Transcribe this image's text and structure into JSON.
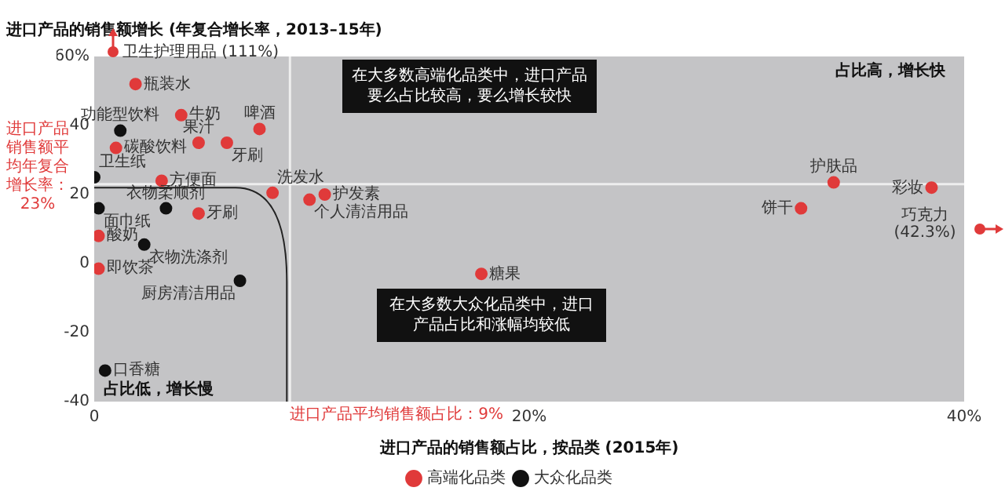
{
  "chart_data": {
    "type": "scatter",
    "ylabel": "进口产品的销售额增长 (年复合增长率，2013–15年)",
    "xlabel": "进口产品的销售额占比，按品类 (2015年)",
    "xlim": [
      0,
      40
    ],
    "xticks": [
      0,
      {
        "value": 20,
        "label": "20%"
      },
      {
        "value": 40,
        "label": "40%"
      }
    ],
    "ylim": [
      -40,
      60
    ],
    "yticks": [
      {
        "value": 60,
        "label": "60%"
      },
      40,
      20,
      0,
      -20,
      -40
    ],
    "grid": false,
    "legend": "bottom",
    "marker": "circle",
    "series": [
      {
        "name": "高端化品类",
        "color": "#e03a3a",
        "x": [
          1.9,
          4.0,
          1.0,
          4.8,
          7.6,
          6.1,
          3.1,
          4.8,
          0.2,
          0.2,
          8.2,
          9.9,
          10.6,
          17.8,
          32.5,
          34.0,
          38.5
        ],
        "values": [
          52,
          43,
          33.5,
          35,
          39,
          35,
          24,
          14.5,
          8,
          -1.5,
          20.5,
          18.5,
          20,
          -3,
          16,
          23.5,
          22
        ]
      },
      {
        "name": "大众化品类",
        "color": "#111111",
        "x": [
          1.2,
          0,
          3.3,
          0.2,
          2.3,
          6.7,
          0.5
        ],
        "values": [
          38.5,
          25,
          16,
          16,
          5.5,
          -5,
          -31
        ]
      }
    ],
    "ref_lines": [
      {
        "axis": "y",
        "value": 23,
        "label": "进口产品销售额平均年复合增长率：23%",
        "color": "#eeeeee"
      },
      {
        "axis": "x",
        "value": 9,
        "label": "进口产品平均销售额占比：9%",
        "color": "#eeeeee"
      }
    ],
    "annotations": [
      "在大多数高端化品类中，进口产品要么占比较高，要么增长较快",
      "在大多数大众化品类中，进口产品占比和涨幅均较低",
      "占比高，增长快",
      "占比低，增长慢",
      "卫生护理用品 (111%)",
      {
        "text": "瓶装水",
        "x": 1.9,
        "y": 52
      },
      {
        "text": "功能型饮料",
        "x": 1.2,
        "y": 38.5
      },
      {
        "text": "牛奶",
        "x": 4.0,
        "y": 43
      },
      {
        "text": "碳酸饮料",
        "x": 1.0,
        "y": 33.5
      },
      {
        "text": "果汁",
        "x": 4.8,
        "y": 35
      },
      {
        "text": "啤酒",
        "x": 7.6,
        "y": 39
      },
      {
        "text": "牙刷",
        "x": 6.1,
        "y": 35
      },
      {
        "text": "卫生纸",
        "x": 0,
        "y": 25
      },
      {
        "text": "方便面",
        "x": 3.1,
        "y": 24
      },
      {
        "text": "衣物柔顺剂",
        "x": 3.3,
        "y": 16
      },
      {
        "text": "面巾纸",
        "x": 0.2,
        "y": 16
      },
      {
        "text": "牙刷",
        "x": 4.8,
        "y": 14.5
      },
      {
        "text": "酸奶",
        "x": 0.2,
        "y": 8
      },
      {
        "text": "即饮茶",
        "x": 0.2,
        "y": -1.5
      },
      {
        "text": "衣物洗涤剂",
        "x": 2.3,
        "y": 5.5
      },
      {
        "text": "厨房清洁用品",
        "x": 6.7,
        "y": -5
      },
      {
        "text": "口香糖",
        "x": 0.5,
        "y": -31
      },
      {
        "text": "洗发水",
        "x": 8.2,
        "y": 20.5
      },
      {
        "text": "个人清洁用品",
        "x": 9.9,
        "y": 18.5
      },
      {
        "text": "护发素",
        "x": 10.6,
        "y": 20
      },
      {
        "text": "糖果",
        "x": 17.8,
        "y": -3
      },
      {
        "text": "饼干",
        "x": 32.5,
        "y": 16
      },
      {
        "text": "护肤品",
        "x": 34.0,
        "y": 23.5
      },
      {
        "text": "彩妆",
        "x": 38.5,
        "y": 22
      },
      "巧克力 (42.3%)"
    ]
  }
}
